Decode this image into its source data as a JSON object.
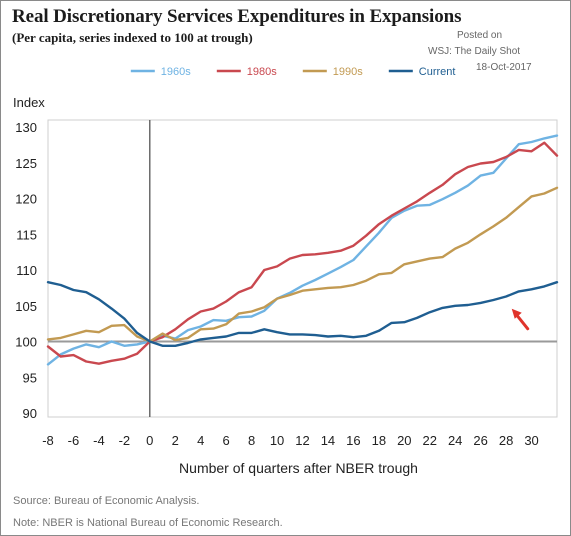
{
  "title": "Real Discretionary Services Expenditures in Expansions",
  "subtitle": "(Per capita, series indexed to 100 at trough)",
  "credit": {
    "posted_on": "Posted on",
    "publisher": "WSJ: The Daily Shot",
    "date": "18-Oct-2017"
  },
  "source": "Source: Bureau of Economic Analysis.",
  "note": "Note: NBER is National Bureau of Economic Research.",
  "chart_data": {
    "type": "line",
    "ylabel": "Index",
    "xlabel": "Number of quarters after NBER trough",
    "xlim": [
      -8,
      32
    ],
    "ylim": [
      90,
      130
    ],
    "x_ticks": [
      -8,
      -6,
      -4,
      -2,
      0,
      2,
      4,
      6,
      8,
      10,
      12,
      14,
      16,
      18,
      20,
      22,
      24,
      26,
      28,
      30
    ],
    "y_ticks": [
      90,
      95,
      100,
      105,
      110,
      115,
      120,
      125,
      130
    ],
    "reference_lines": {
      "x": 0,
      "y": 100
    },
    "grid": false,
    "legend": "top",
    "annotation": "red arrow pointing at the Current series near quarter 29",
    "x": [
      -8,
      -7,
      -6,
      -5,
      -4,
      -3,
      -2,
      -1,
      0,
      1,
      2,
      3,
      4,
      5,
      6,
      7,
      8,
      9,
      10,
      11,
      12,
      13,
      14,
      15,
      16,
      17,
      18,
      19,
      20,
      21,
      22,
      23,
      24,
      25,
      26,
      27,
      28,
      29,
      30,
      31,
      32
    ],
    "series": [
      {
        "name": "1960s",
        "color": "#6fb3e3",
        "values": [
          96.8,
          98.2,
          99.0,
          99.6,
          99.2,
          100.0,
          99.4,
          99.6,
          100.0,
          100.8,
          100.4,
          101.6,
          102.1,
          103.0,
          102.9,
          103.4,
          103.5,
          104.3,
          106.0,
          106.8,
          107.8,
          108.6,
          109.5,
          110.4,
          111.4,
          113.3,
          115.2,
          117.3,
          118.3,
          119.0,
          119.1,
          119.9,
          120.8,
          121.8,
          123.2,
          123.6,
          125.6,
          127.6,
          127.9,
          128.4,
          128.8
        ]
      },
      {
        "name": "1980s",
        "color": "#c9484f",
        "values": [
          99.3,
          97.9,
          98.1,
          97.2,
          96.9,
          97.3,
          97.6,
          98.3,
          100.0,
          100.6,
          101.7,
          103.1,
          104.2,
          104.6,
          105.6,
          106.9,
          107.6,
          110.0,
          110.5,
          111.6,
          112.1,
          112.2,
          112.4,
          112.7,
          113.4,
          114.8,
          116.4,
          117.6,
          118.6,
          119.6,
          120.8,
          121.9,
          123.4,
          124.4,
          124.9,
          125.1,
          125.8,
          126.8,
          126.6,
          127.8,
          126.0
        ]
      },
      {
        "name": "1990s",
        "color": "#c29a52",
        "values": [
          100.3,
          100.5,
          101.0,
          101.5,
          101.3,
          102.2,
          102.3,
          100.7,
          100.0,
          101.1,
          100.2,
          100.5,
          101.7,
          101.8,
          102.4,
          103.9,
          104.2,
          104.8,
          106.0,
          106.5,
          107.1,
          107.3,
          107.5,
          107.6,
          107.9,
          108.5,
          109.4,
          109.6,
          110.8,
          111.2,
          111.6,
          111.8,
          113.0,
          113.8,
          115.0,
          116.1,
          117.3,
          118.8,
          120.3,
          120.7,
          121.5
        ]
      },
      {
        "name": "Current",
        "color": "#1f5e91",
        "values": [
          108.3,
          107.9,
          107.2,
          106.9,
          105.9,
          104.6,
          103.2,
          101.2,
          100.0,
          99.4,
          99.4,
          99.8,
          100.3,
          100.5,
          100.7,
          101.2,
          101.2,
          101.7,
          101.3,
          101.0,
          101.0,
          100.9,
          100.7,
          100.8,
          100.6,
          100.8,
          101.5,
          102.6,
          102.7,
          103.3,
          104.1,
          104.7,
          105.0,
          105.1,
          105.4,
          105.8,
          106.3,
          107.0,
          107.3,
          107.7,
          108.3
        ]
      }
    ]
  }
}
